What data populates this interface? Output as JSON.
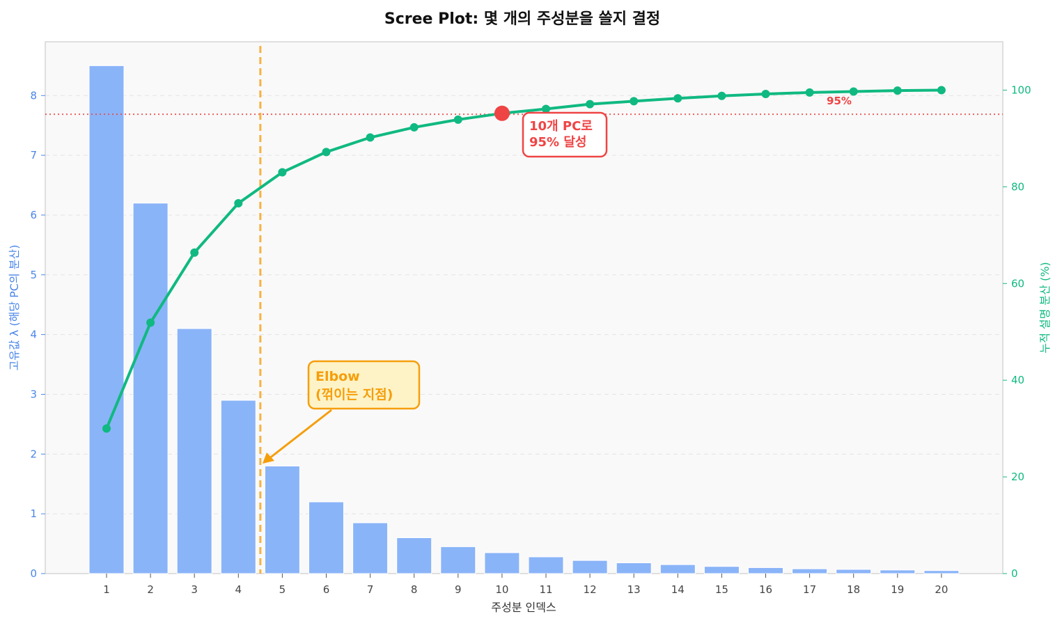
{
  "chart_data": {
    "type": "bar",
    "title": "Scree Plot: 몇 개의 주성분을 쓸지 결정",
    "xlabel": "주성분 인덱스",
    "ylabel_left": "고유값 λ (해당 PC의 분산)",
    "ylabel_right": "누적 설명 분산 (%)",
    "categories": [
      "1",
      "2",
      "3",
      "4",
      "5",
      "6",
      "7",
      "8",
      "9",
      "10",
      "11",
      "12",
      "13",
      "14",
      "15",
      "16",
      "17",
      "18",
      "19",
      "20"
    ],
    "ylim_left": [
      0,
      8.9
    ],
    "ylim_right": [
      0,
      110
    ],
    "yticks_left": [
      "0",
      "1",
      "2",
      "3",
      "4",
      "5",
      "6",
      "7",
      "8"
    ],
    "yticks_right": [
      "0",
      "20",
      "40",
      "60",
      "80",
      "100"
    ],
    "series": [
      {
        "type": "bar",
        "axis": "left",
        "values": [
          8.5,
          6.2,
          4.1,
          2.9,
          1.8,
          1.2,
          0.85,
          0.6,
          0.45,
          0.35,
          0.28,
          0.22,
          0.18,
          0.15,
          0.12,
          0.1,
          0.08,
          0.07,
          0.06,
          0.05
        ],
        "color": "#8ab4f8"
      },
      {
        "type": "line",
        "axis": "right",
        "values": [
          30.0,
          51.9,
          66.4,
          76.6,
          83.0,
          87.2,
          90.2,
          92.3,
          93.9,
          95.2,
          96.1,
          97.1,
          97.7,
          98.3,
          98.8,
          99.2,
          99.5,
          99.7,
          99.9,
          100.0
        ],
        "color": "#10b981"
      }
    ],
    "threshold": {
      "value": 95,
      "label": "95%",
      "color": "#ef4444"
    },
    "elbow_line": {
      "x": 4.5,
      "color": "#f5a623"
    },
    "annotations": {
      "elbow": {
        "line1": "Elbow",
        "line2": "(꺾이는 지점)",
        "color": "#f59e0b"
      },
      "reach": {
        "line1": "10개 PC로",
        "line2": "95% 달성",
        "color": "#ef4444",
        "x": 10
      }
    },
    "colors": {
      "left_axis": "#4a86e8",
      "right_axis": "#10b981",
      "plot_bg": "#f9f9f9"
    },
    "grid": true
  }
}
